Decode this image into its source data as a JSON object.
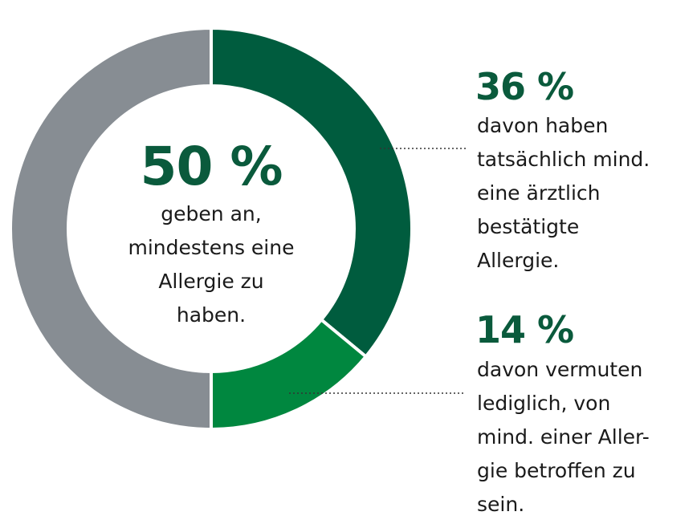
{
  "chart_data": {
    "type": "pie",
    "donut": true,
    "slices": [
      {
        "label": "davon haben tatsächlich mind. eine ärztlich bestätigte Allergie.",
        "value": 36,
        "color": "#005c3e"
      },
      {
        "label": "davon vermuten lediglich, von mind. einer Allergie betroffen zu sein.",
        "value": 14,
        "color": "#00873f"
      },
      {
        "label": "",
        "value": 50,
        "color": "#878d93"
      }
    ],
    "center": {
      "value": "50 %",
      "text": "geben an,\nmindestens eine\nAllergie zu\nhaben."
    },
    "annotations": [
      {
        "value": "36 %",
        "text": "davon haben\ntatsächlich mind.\neine ärztlich\nbestätigte\nAllergie."
      },
      {
        "value": "14 %",
        "text": "davon vermuten\nlediglich, von\nmind. einer Aller-\ngie betroffen zu\nsein."
      }
    ]
  }
}
